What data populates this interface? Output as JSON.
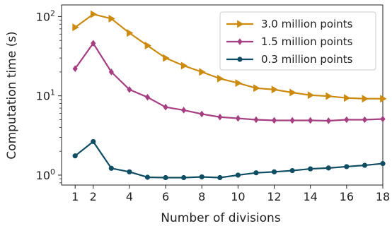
{
  "chart_data": {
    "type": "line",
    "xlabel": "Number of divisions",
    "ylabel": "Computation time (s)",
    "yscale": "log",
    "xlim": [
      0.25,
      18
    ],
    "ylim": [
      0.75,
      140
    ],
    "grid": false,
    "legend_position": "top-right",
    "x": [
      1,
      2,
      3,
      4,
      5,
      6,
      7,
      8,
      9,
      10,
      11,
      12,
      13,
      14,
      15,
      16,
      17,
      18
    ],
    "x_ticks": [
      1,
      2,
      4,
      6,
      8,
      10,
      12,
      14,
      16,
      18
    ],
    "x_tick_labels": [
      "1",
      "2",
      "4",
      "6",
      "8",
      "10",
      "12",
      "14",
      "16",
      "18"
    ],
    "y_ticks": [
      1,
      10,
      100
    ],
    "y_tick_labels": [
      {
        "base": "10",
        "exp": "0"
      },
      {
        "base": "10",
        "exp": "1"
      },
      {
        "base": "10",
        "exp": "2"
      }
    ],
    "series": [
      {
        "name": "3.0 million points",
        "color": "#CC8A0E",
        "marker": "triangle-right",
        "values": [
          73,
          107,
          94,
          62,
          43,
          30,
          24,
          20,
          16.5,
          14.5,
          12.5,
          12,
          11,
          10.2,
          9.9,
          9.4,
          9.2,
          9.2
        ]
      },
      {
        "name": "1.5 million points",
        "color": "#A63E82",
        "marker": "diamond",
        "values": [
          22,
          46,
          20,
          12,
          9.6,
          7.2,
          6.6,
          5.9,
          5.4,
          5.2,
          5.0,
          4.9,
          4.9,
          4.9,
          4.85,
          5.0,
          5.0,
          5.1
        ]
      },
      {
        "name": "0.3 million points",
        "color": "#0F4D63",
        "marker": "circle",
        "values": [
          1.75,
          2.65,
          1.22,
          1.1,
          0.94,
          0.93,
          0.93,
          0.95,
          0.93,
          1.0,
          1.07,
          1.1,
          1.14,
          1.2,
          1.23,
          1.28,
          1.33,
          1.4
        ]
      }
    ]
  }
}
